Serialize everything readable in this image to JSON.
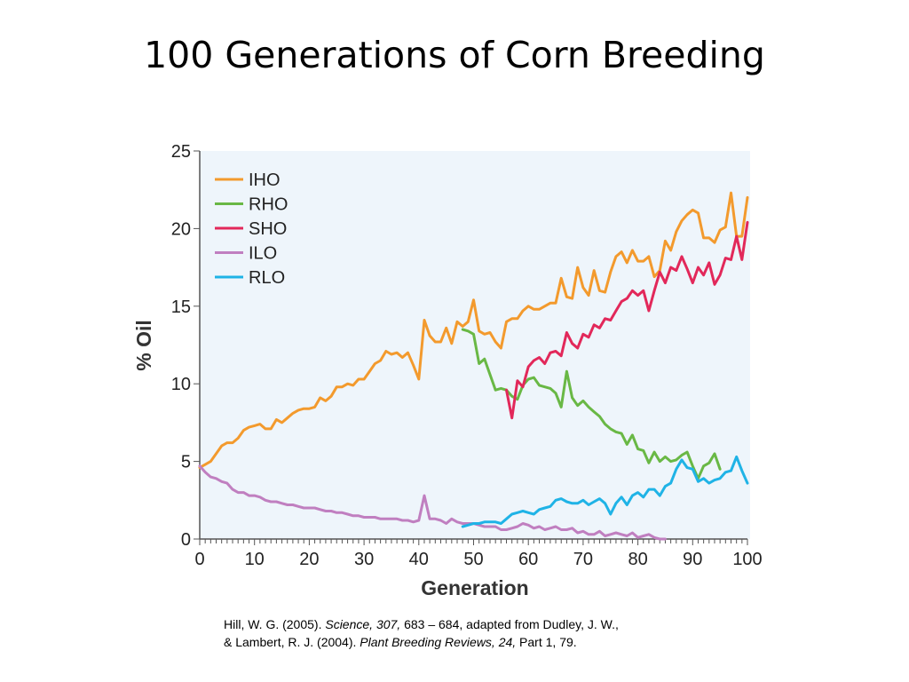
{
  "slide": {
    "title": "100 Generations of Corn Breeding"
  },
  "citation": {
    "line1_author": "Hill, W. G. (2005). ",
    "line1_journal": "Science, 307,",
    "line1_rest": " 683 – 684, adapted from Dudley, J. W.,",
    "line2_author": "& Lambert, R. J. (2004). ",
    "line2_journal": "Plant Breeding Reviews, 24,",
    "line2_rest": " Part 1, 79."
  },
  "chart_data": {
    "type": "line",
    "title": "",
    "xlabel": "Generation",
    "ylabel": "% Oil",
    "xlim": [
      0,
      100
    ],
    "ylim": [
      0,
      25
    ],
    "xticks": [
      0,
      10,
      20,
      30,
      40,
      50,
      60,
      70,
      80,
      90,
      100
    ],
    "yticks": [
      0,
      5,
      10,
      15,
      20,
      25
    ],
    "grid": false,
    "legend_position": "top-left",
    "plot_background": "#eef5fb",
    "series": [
      {
        "name": "IHO",
        "color": "#f39a2d",
        "x": [
          0,
          1,
          2,
          3,
          4,
          5,
          6,
          7,
          8,
          9,
          10,
          11,
          12,
          13,
          14,
          15,
          16,
          17,
          18,
          19,
          20,
          21,
          22,
          23,
          24,
          25,
          26,
          27,
          28,
          29,
          30,
          31,
          32,
          33,
          34,
          35,
          36,
          37,
          38,
          39,
          40,
          41,
          42,
          43,
          44,
          45,
          46,
          47,
          48,
          49,
          50,
          51,
          52,
          53,
          54,
          55,
          56,
          57,
          58,
          59,
          60,
          61,
          62,
          63,
          64,
          65,
          66,
          67,
          68,
          69,
          70,
          71,
          72,
          73,
          74,
          75,
          76,
          77,
          78,
          79,
          80,
          81,
          82,
          83,
          84,
          85,
          86,
          87,
          88,
          89,
          90,
          91,
          92,
          93,
          94,
          95,
          96,
          97,
          98,
          99,
          100
        ],
        "y": [
          4.6,
          4.8,
          5.0,
          5.5,
          6.0,
          6.2,
          6.2,
          6.5,
          7.0,
          7.2,
          7.3,
          7.4,
          7.1,
          7.1,
          7.7,
          7.5,
          7.8,
          8.1,
          8.3,
          8.4,
          8.4,
          8.5,
          9.1,
          8.9,
          9.2,
          9.8,
          9.8,
          10.0,
          9.9,
          10.3,
          10.3,
          10.8,
          11.3,
          11.5,
          12.1,
          11.9,
          12.0,
          11.7,
          12.0,
          11.2,
          10.3,
          14.1,
          13.1,
          12.7,
          12.7,
          13.6,
          12.6,
          14.0,
          13.7,
          14.0,
          15.4,
          13.4,
          13.2,
          13.3,
          12.7,
          12.3,
          14.0,
          14.2,
          14.2,
          14.7,
          15.0,
          14.8,
          14.8,
          15.0,
          15.2,
          15.2,
          16.8,
          15.6,
          15.5,
          17.5,
          16.2,
          15.7,
          17.3,
          16.0,
          15.9,
          17.2,
          18.2,
          18.5,
          17.8,
          18.6,
          17.9,
          17.9,
          18.2,
          16.9,
          17.3,
          19.2,
          18.6,
          19.8,
          20.5,
          20.9,
          21.2,
          21.0,
          19.4,
          19.4,
          19.1,
          19.9,
          20.1,
          22.3,
          19.5,
          19.5,
          22.0
        ],
        "y_extra_note": ""
      },
      {
        "name": "RHO",
        "color": "#69b845",
        "x": [
          48,
          49,
          50,
          51,
          52,
          53,
          54,
          55,
          56,
          57,
          58,
          59,
          60,
          61,
          62,
          63,
          64,
          65,
          66,
          67,
          68,
          69,
          70,
          71,
          72,
          73,
          74,
          75,
          76,
          77,
          78,
          79,
          80,
          81,
          82,
          83,
          84,
          85,
          86,
          87,
          88,
          89,
          90,
          91,
          92,
          93,
          94,
          95
        ],
        "y": [
          13.5,
          13.4,
          13.2,
          11.3,
          11.6,
          10.6,
          9.6,
          9.7,
          9.6,
          9.2,
          9.0,
          9.9,
          10.3,
          10.4,
          9.9,
          9.8,
          9.7,
          9.4,
          8.5,
          10.8,
          9.1,
          8.6,
          8.9,
          8.5,
          8.2,
          7.9,
          7.4,
          7.1,
          6.9,
          6.8,
          6.1,
          6.7,
          5.8,
          5.7,
          4.9,
          5.6,
          5.0,
          5.3,
          5.0,
          5.1,
          5.4,
          5.6,
          4.7,
          3.9,
          4.7,
          4.9,
          5.5,
          4.5
        ]
      },
      {
        "name": "SHO",
        "color": "#e2285a",
        "x": [
          56,
          57,
          58,
          59,
          60,
          61,
          62,
          63,
          64,
          65,
          66,
          67,
          68,
          69,
          70,
          71,
          72,
          73,
          74,
          75,
          76,
          77,
          78,
          79,
          80,
          81,
          82,
          83,
          84,
          85,
          86,
          87,
          88,
          89,
          90,
          91,
          92,
          93,
          94,
          95,
          96,
          97,
          98,
          99,
          100
        ],
        "y": [
          9.6,
          7.8,
          10.2,
          9.8,
          11.1,
          11.5,
          11.7,
          11.3,
          12.0,
          12.1,
          11.8,
          13.3,
          12.6,
          12.3,
          13.2,
          13.0,
          13.8,
          13.6,
          14.2,
          14.1,
          14.7,
          15.3,
          15.5,
          16.0,
          15.7,
          16.0,
          14.7,
          16.0,
          17.2,
          16.5,
          17.5,
          17.3,
          18.2,
          17.4,
          16.5,
          17.5,
          17.0,
          17.8,
          16.4,
          17.0,
          18.1,
          18.0,
          19.5,
          18.0,
          20.4
        ]
      },
      {
        "name": "ILO",
        "color": "#c07fc0",
        "x": [
          0,
          1,
          2,
          3,
          4,
          5,
          6,
          7,
          8,
          9,
          10,
          11,
          12,
          13,
          14,
          15,
          16,
          17,
          18,
          19,
          20,
          21,
          22,
          23,
          24,
          25,
          26,
          27,
          28,
          29,
          30,
          31,
          32,
          33,
          34,
          35,
          36,
          37,
          38,
          39,
          40,
          41,
          42,
          43,
          44,
          45,
          46,
          47,
          48,
          49,
          50,
          51,
          52,
          53,
          54,
          55,
          56,
          57,
          58,
          59,
          60,
          61,
          62,
          63,
          64,
          65,
          66,
          67,
          68,
          69,
          70,
          71,
          72,
          73,
          74,
          75,
          76,
          77,
          78,
          79,
          80,
          81,
          82,
          83,
          84,
          85
        ],
        "y": [
          4.7,
          4.3,
          4.0,
          3.9,
          3.7,
          3.6,
          3.2,
          3.0,
          3.0,
          2.8,
          2.8,
          2.7,
          2.5,
          2.4,
          2.4,
          2.3,
          2.2,
          2.2,
          2.1,
          2.0,
          2.0,
          2.0,
          1.9,
          1.8,
          1.8,
          1.7,
          1.7,
          1.6,
          1.5,
          1.5,
          1.4,
          1.4,
          1.4,
          1.3,
          1.3,
          1.3,
          1.3,
          1.2,
          1.2,
          1.1,
          1.2,
          2.8,
          1.3,
          1.3,
          1.2,
          1.0,
          1.3,
          1.1,
          1.0,
          1.0,
          1.0,
          0.9,
          0.8,
          0.8,
          0.8,
          0.6,
          0.6,
          0.7,
          0.8,
          1.0,
          0.9,
          0.7,
          0.8,
          0.6,
          0.7,
          0.8,
          0.6,
          0.6,
          0.7,
          0.4,
          0.5,
          0.3,
          0.3,
          0.5,
          0.2,
          0.3,
          0.4,
          0.3,
          0.2,
          0.4,
          0.1,
          0.2,
          0.3,
          0.1,
          0.0,
          0.0
        ]
      },
      {
        "name": "RLO",
        "color": "#1fb3e6",
        "x": [
          48,
          49,
          50,
          51,
          52,
          53,
          54,
          55,
          56,
          57,
          58,
          59,
          60,
          61,
          62,
          63,
          64,
          65,
          66,
          67,
          68,
          69,
          70,
          71,
          72,
          73,
          74,
          75,
          76,
          77,
          78,
          79,
          80,
          81,
          82,
          83,
          84,
          85,
          86,
          87,
          88,
          89,
          90,
          91,
          92,
          93,
          94,
          95,
          96,
          97,
          98,
          99,
          100
        ],
        "y": [
          0.8,
          0.9,
          1.0,
          1.0,
          1.1,
          1.1,
          1.1,
          1.0,
          1.3,
          1.6,
          1.7,
          1.8,
          1.7,
          1.6,
          1.9,
          2.0,
          2.1,
          2.5,
          2.6,
          2.4,
          2.3,
          2.3,
          2.5,
          2.2,
          2.4,
          2.6,
          2.3,
          1.6,
          2.3,
          2.7,
          2.2,
          2.8,
          3.0,
          2.7,
          3.2,
          3.2,
          2.8,
          3.4,
          3.6,
          4.5,
          5.1,
          4.6,
          4.5,
          3.7,
          3.9,
          3.6,
          3.8,
          3.9,
          4.3,
          4.4,
          5.3,
          4.4,
          3.6
        ]
      }
    ]
  }
}
